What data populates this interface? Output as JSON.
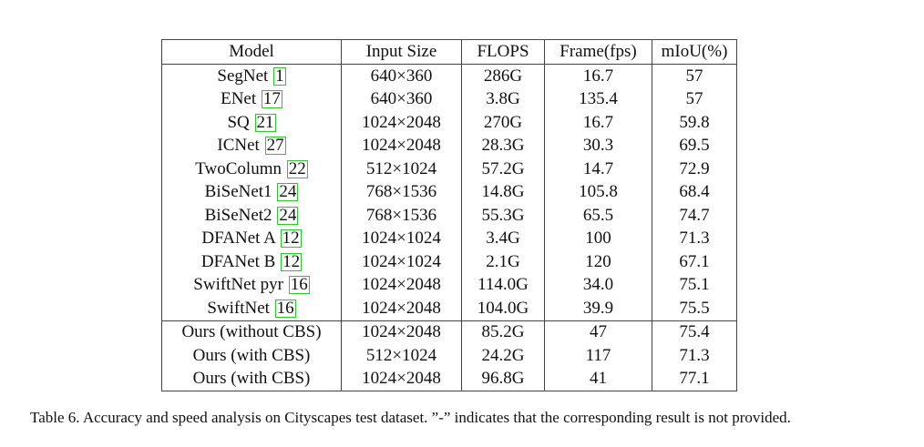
{
  "table": {
    "headers": [
      "Model",
      "Input Size",
      "FLOPS",
      "Frame(fps)",
      "mIoU(%)"
    ],
    "rows": [
      {
        "model": "SegNet",
        "ref": "1",
        "size": "640×360",
        "flops": "286G",
        "fps": "16.7",
        "miou": "57"
      },
      {
        "model": "ENet",
        "ref": "17",
        "size": "640×360",
        "flops": "3.8G",
        "fps": "135.4",
        "miou": "57"
      },
      {
        "model": "SQ",
        "ref": "21",
        "size": "1024×2048",
        "flops": "270G",
        "fps": "16.7",
        "miou": "59.8"
      },
      {
        "model": "ICNet",
        "ref": "27",
        "size": "1024×2048",
        "flops": "28.3G",
        "fps": "30.3",
        "miou": "69.5"
      },
      {
        "model": "TwoColumn",
        "ref": "22",
        "size": "512×1024",
        "flops": "57.2G",
        "fps": "14.7",
        "miou": "72.9"
      },
      {
        "model": "BiSeNet1",
        "ref": "24",
        "size": "768×1536",
        "flops": "14.8G",
        "fps": "105.8",
        "miou": "68.4"
      },
      {
        "model": "BiSeNet2",
        "ref": "24",
        "size": "768×1536",
        "flops": "55.3G",
        "fps": "65.5",
        "miou": "74.7"
      },
      {
        "model": "DFANet A",
        "ref": "12",
        "size": "1024×1024",
        "flops": "3.4G",
        "fps": "100",
        "miou": "71.3"
      },
      {
        "model": "DFANet B",
        "ref": "12",
        "size": "1024×1024",
        "flops": "2.1G",
        "fps": "120",
        "miou": "67.1"
      },
      {
        "model": "SwiftNet pyr",
        "ref": "16",
        "size": "1024×2048",
        "flops": "114.0G",
        "fps": "34.0",
        "miou": "75.1"
      },
      {
        "model": "SwiftNet",
        "ref": "16",
        "size": "1024×2048",
        "flops": "104.0G",
        "fps": "39.9",
        "miou": "75.5"
      },
      {
        "model": "Ours (without CBS)",
        "size": "1024×2048",
        "flops": "85.2G",
        "fps": "47",
        "miou": "75.4"
      },
      {
        "model": "Ours (with CBS)",
        "size": "512×1024",
        "flops": "24.2G",
        "fps": "117",
        "miou": "71.3"
      },
      {
        "model": "Ours (with CBS)",
        "size": "1024×2048",
        "flops": "96.8G",
        "fps": "41",
        "miou": "77.1"
      }
    ]
  },
  "caption": "Table 6. Accuracy and speed analysis on Cityscapes test dataset. ”-” indicates that the corresponding result is not provided."
}
